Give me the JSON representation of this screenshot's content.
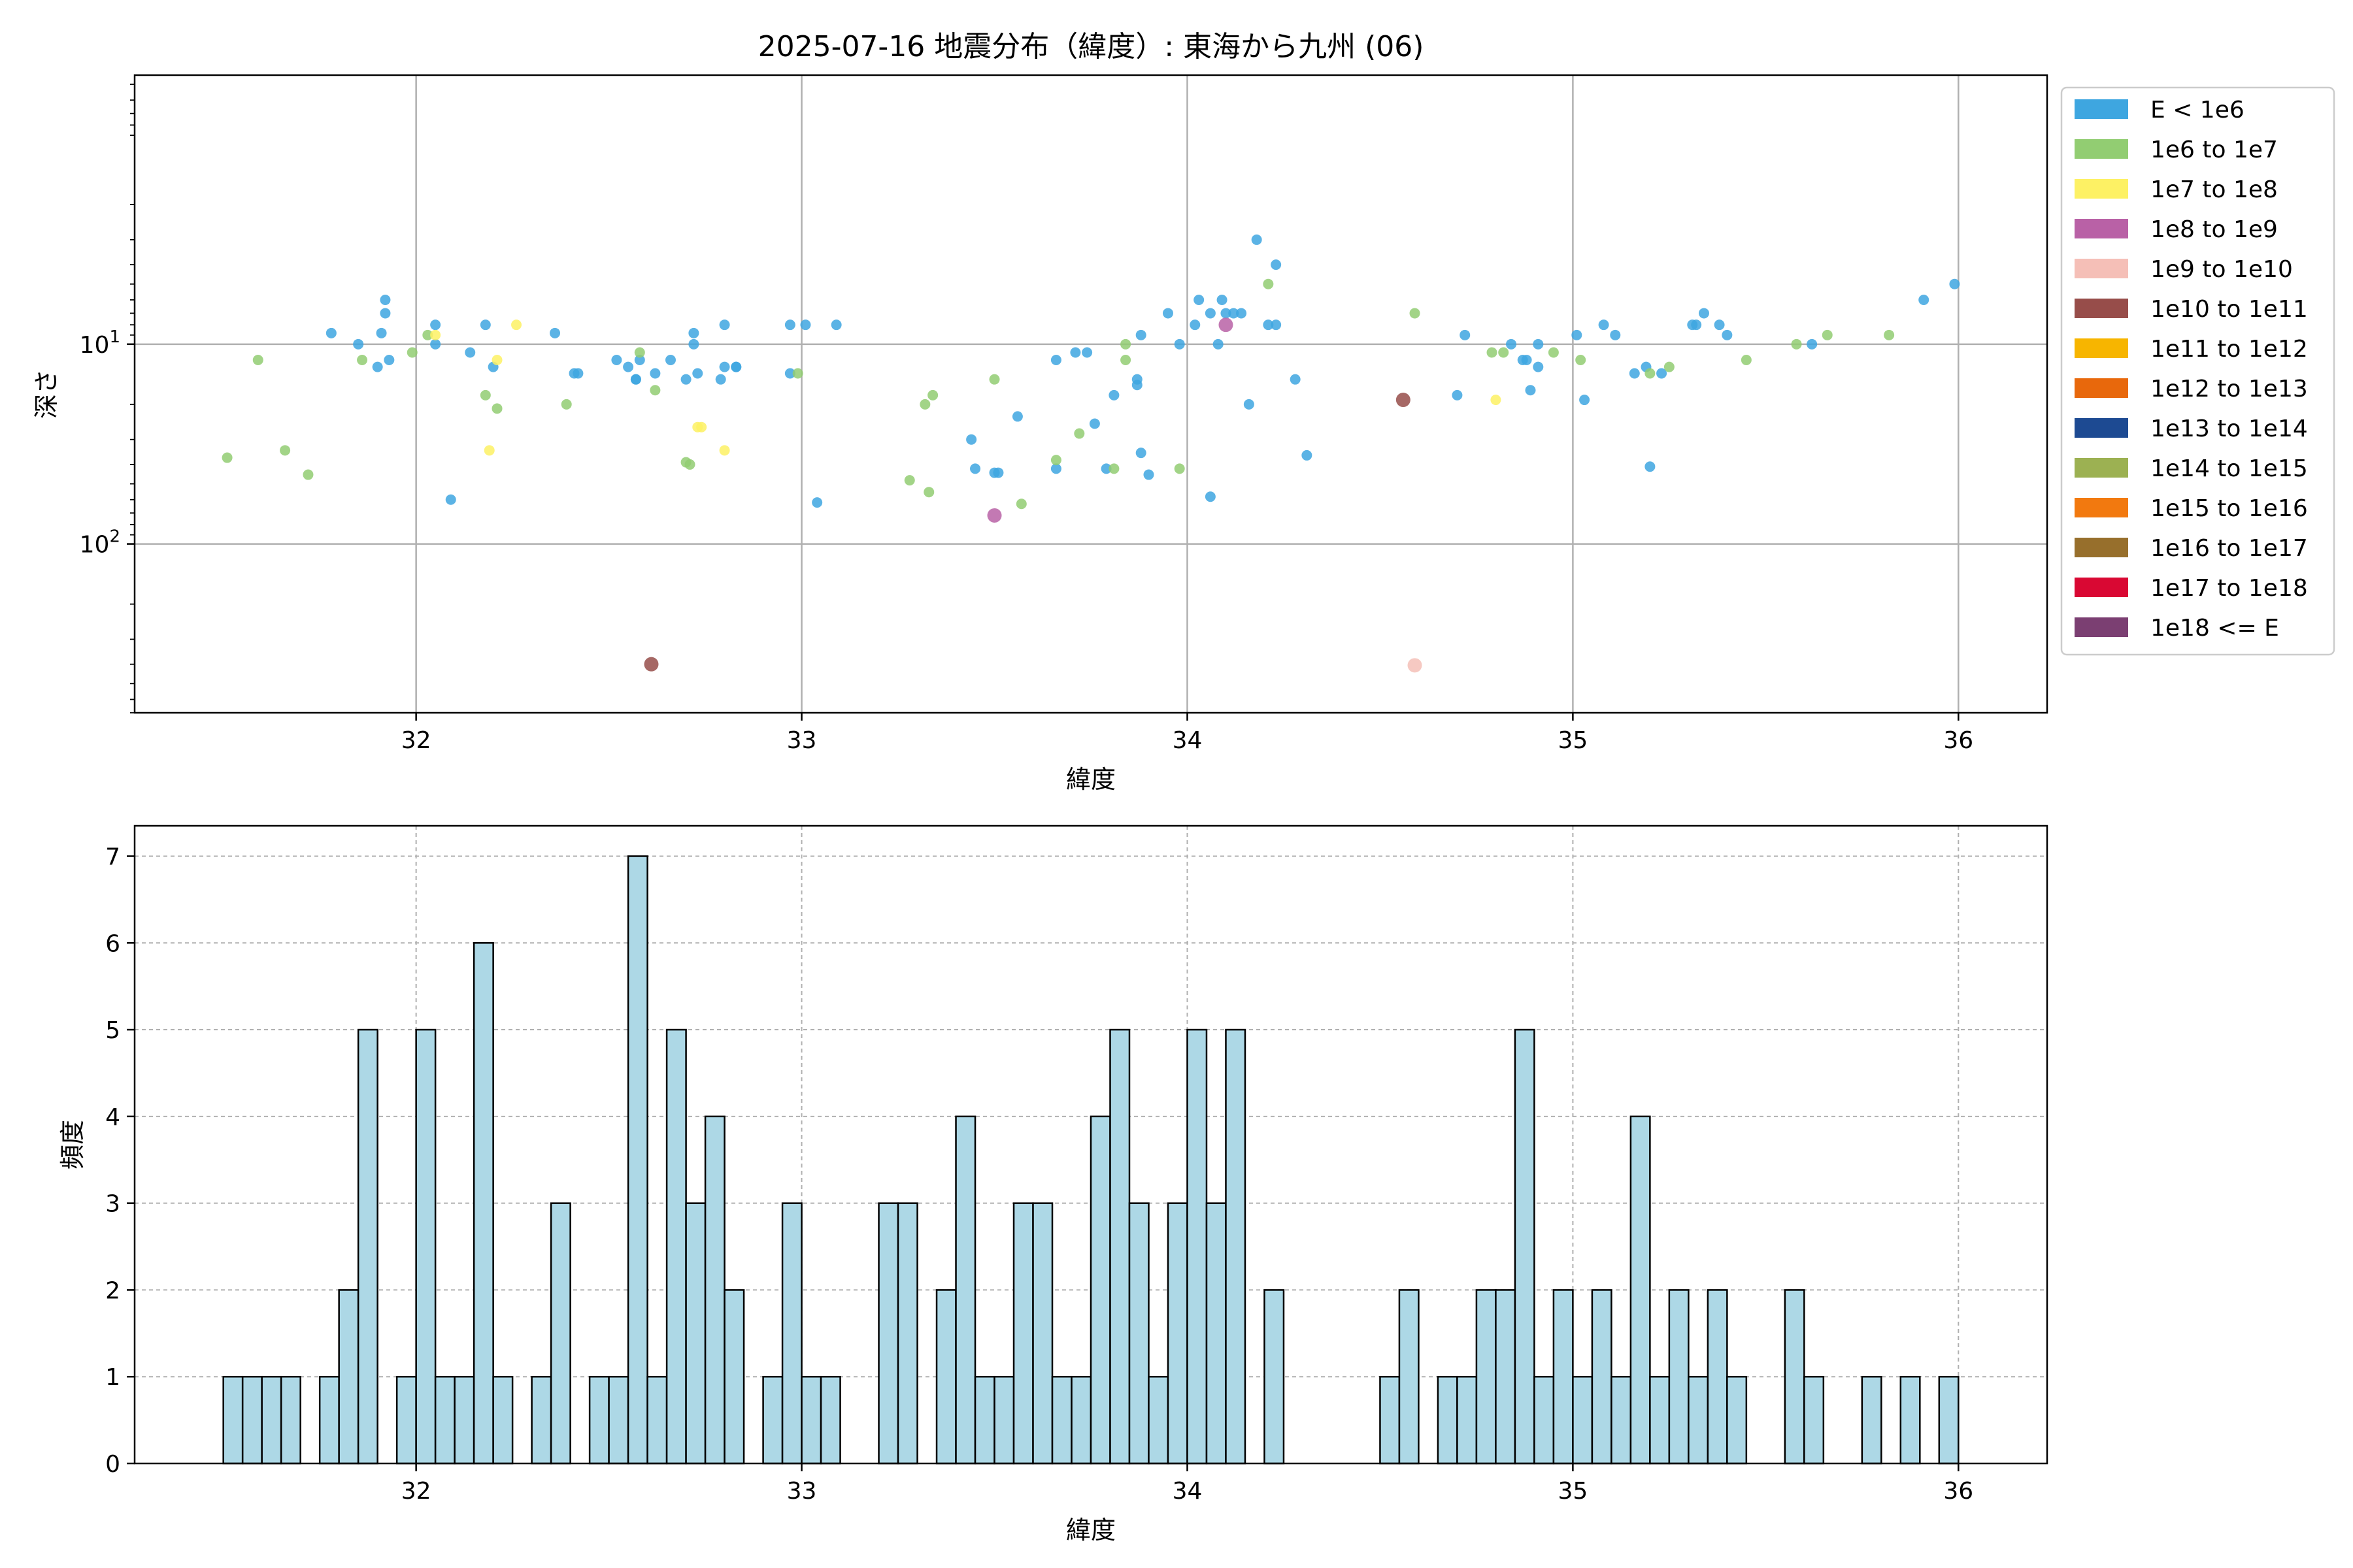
{
  "title": "2025-07-16 地震分布（緯度）: 東海から九州 (06)",
  "chart_data": [
    {
      "type": "scatter",
      "xlabel": "緯度",
      "ylabel": "深さ",
      "yscale": "log",
      "yaxis_inverted": true,
      "xlim": [
        31.27,
        36.23
      ],
      "ylim_depth": [
        0.45,
        700
      ],
      "xticks": [
        32,
        33,
        34,
        35,
        36
      ],
      "yticks": [
        {
          "value": 10,
          "label": "10^1"
        },
        {
          "value": 100,
          "label": "10^2"
        }
      ],
      "grid": true,
      "legend_position": "outside-right-top",
      "legend": [
        {
          "label": "E < 1e6",
          "color": "#3ea6e0"
        },
        {
          "label": "1e6 to 1e7",
          "color": "#92cd72"
        },
        {
          "label": "1e7 to 1e8",
          "color": "#fdf164"
        },
        {
          "label": "1e8 to 1e9",
          "color": "#b961a6"
        },
        {
          "label": "1e9 to 1e10",
          "color": "#f5bfb7"
        },
        {
          "label": "1e10 to 1e11",
          "color": "#974d4a"
        },
        {
          "label": "1e11 to 1e12",
          "color": "#f7b500"
        },
        {
          "label": "1e12 to 1e13",
          "color": "#e8680c"
        },
        {
          "label": "1e13 to 1e14",
          "color": "#1d4a92"
        },
        {
          "label": "1e14 to 1e15",
          "color": "#9cb152"
        },
        {
          "label": "1e15 to 1e16",
          "color": "#f2790f"
        },
        {
          "label": "1e16 to 1e17",
          "color": "#976f2c"
        },
        {
          "label": "1e17 to 1e18",
          "color": "#d90833"
        },
        {
          "label": "1e18 <= E",
          "color": "#7b3f72"
        }
      ],
      "series": [
        {
          "class": 0,
          "points": [
            [
              31.78,
              8.8
            ],
            [
              31.85,
              10
            ],
            [
              31.9,
              13
            ],
            [
              31.91,
              8.8
            ],
            [
              31.92,
              6
            ],
            [
              31.92,
              7
            ],
            [
              31.93,
              12
            ],
            [
              32.05,
              8
            ],
            [
              32.05,
              10
            ],
            [
              32.09,
              60
            ],
            [
              32.14,
              11
            ],
            [
              32.18,
              8
            ],
            [
              32.2,
              13
            ],
            [
              32.36,
              8.8
            ],
            [
              32.41,
              14
            ],
            [
              32.42,
              14
            ],
            [
              32.52,
              12
            ],
            [
              32.55,
              13
            ],
            [
              32.57,
              15
            ],
            [
              32.57,
              15
            ],
            [
              32.58,
              12
            ],
            [
              32.62,
              14
            ],
            [
              32.66,
              12
            ],
            [
              32.7,
              15
            ],
            [
              32.72,
              10
            ],
            [
              32.73,
              14
            ],
            [
              32.72,
              8.8
            ],
            [
              32.79,
              15
            ],
            [
              32.8,
              13
            ],
            [
              32.8,
              8
            ],
            [
              32.83,
              13
            ],
            [
              32.83,
              13
            ],
            [
              32.97,
              14
            ],
            [
              32.97,
              8
            ],
            [
              33.01,
              8
            ],
            [
              33.04,
              62
            ],
            [
              33.09,
              8
            ],
            [
              33.44,
              30
            ],
            [
              33.45,
              42
            ],
            [
              33.5,
              44
            ],
            [
              33.51,
              44
            ],
            [
              33.56,
              23
            ],
            [
              33.66,
              12
            ],
            [
              33.66,
              42
            ],
            [
              33.71,
              11
            ],
            [
              33.74,
              11
            ],
            [
              33.76,
              25
            ],
            [
              33.79,
              42
            ],
            [
              33.81,
              18
            ],
            [
              33.87,
              16
            ],
            [
              33.87,
              15
            ],
            [
              33.88,
              9
            ],
            [
              33.88,
              35
            ],
            [
              33.9,
              45
            ],
            [
              33.95,
              7
            ],
            [
              33.98,
              10
            ],
            [
              34.02,
              8
            ],
            [
              34.03,
              6
            ],
            [
              34.06,
              7
            ],
            [
              34.06,
              58
            ],
            [
              34.08,
              10
            ],
            [
              34.09,
              6
            ],
            [
              34.1,
              7
            ],
            [
              34.12,
              7
            ],
            [
              34.14,
              7
            ],
            [
              34.16,
              20
            ],
            [
              34.18,
              3
            ],
            [
              34.21,
              8
            ],
            [
              34.23,
              4
            ],
            [
              34.23,
              8
            ],
            [
              34.28,
              15
            ],
            [
              34.31,
              36
            ],
            [
              34.7,
              18
            ],
            [
              34.72,
              9
            ],
            [
              34.84,
              10
            ],
            [
              34.87,
              12
            ],
            [
              34.88,
              12
            ],
            [
              34.89,
              17
            ],
            [
              34.91,
              13
            ],
            [
              34.91,
              10
            ],
            [
              35.01,
              9
            ],
            [
              35.03,
              19
            ],
            [
              35.08,
              8
            ],
            [
              35.11,
              9
            ],
            [
              35.16,
              14
            ],
            [
              35.19,
              13
            ],
            [
              35.2,
              41
            ],
            [
              35.23,
              14
            ],
            [
              35.31,
              8
            ],
            [
              35.32,
              8
            ],
            [
              35.34,
              7
            ],
            [
              35.38,
              8
            ],
            [
              35.4,
              9
            ],
            [
              35.62,
              10
            ],
            [
              35.91,
              6
            ],
            [
              35.99,
              5
            ]
          ]
        },
        {
          "class": 1,
          "points": [
            [
              31.51,
              37
            ],
            [
              31.59,
              12
            ],
            [
              31.66,
              34
            ],
            [
              31.72,
              45
            ],
            [
              31.86,
              12
            ],
            [
              31.99,
              11
            ],
            [
              32.03,
              9
            ],
            [
              32.18,
              18
            ],
            [
              32.21,
              21
            ],
            [
              32.39,
              20
            ],
            [
              32.58,
              11
            ],
            [
              32.62,
              17
            ],
            [
              32.7,
              39
            ],
            [
              32.71,
              40
            ],
            [
              32.99,
              14
            ],
            [
              33.28,
              48
            ],
            [
              33.32,
              20
            ],
            [
              33.33,
              55
            ],
            [
              33.34,
              18
            ],
            [
              33.5,
              15
            ],
            [
              33.57,
              63
            ],
            [
              33.66,
              38
            ],
            [
              33.72,
              28
            ],
            [
              33.81,
              42
            ],
            [
              33.84,
              12
            ],
            [
              33.84,
              10
            ],
            [
              33.98,
              42
            ],
            [
              34.21,
              5
            ],
            [
              34.59,
              7
            ],
            [
              34.79,
              11
            ],
            [
              34.82,
              11
            ],
            [
              34.95,
              11
            ],
            [
              35.02,
              12
            ],
            [
              35.2,
              14
            ],
            [
              35.25,
              13
            ],
            [
              35.45,
              12
            ],
            [
              35.58,
              10
            ],
            [
              35.66,
              9
            ],
            [
              35.82,
              9
            ]
          ]
        },
        {
          "class": 2,
          "points": [
            [
              32.05,
              9
            ],
            [
              32.19,
              34
            ],
            [
              32.21,
              12
            ],
            [
              32.26,
              8
            ],
            [
              32.73,
              26
            ],
            [
              32.74,
              26
            ],
            [
              32.8,
              34
            ],
            [
              34.8,
              19
            ]
          ]
        },
        {
          "class": 3,
          "points": [
            [
              33.5,
              72
            ],
            [
              34.1,
              8
            ]
          ]
        },
        {
          "class": 4,
          "points": [
            [
              34.59,
              405
            ]
          ]
        },
        {
          "class": 5,
          "points": [
            [
              32.61,
              400
            ],
            [
              34.56,
              19
            ]
          ]
        }
      ]
    },
    {
      "type": "bar",
      "xlabel": "緯度",
      "ylabel": "頻度",
      "xlim": [
        31.27,
        36.23
      ],
      "ylim": [
        0,
        7.35
      ],
      "xticks": [
        32,
        33,
        34,
        35,
        36
      ],
      "yticks": [
        0,
        1,
        2,
        3,
        4,
        5,
        6,
        7
      ],
      "grid": true,
      "bar_color": "#add8e6",
      "bin_start": 31.5,
      "bin_width": 0.05,
      "values": [
        1,
        1,
        1,
        1,
        0,
        1,
        2,
        5,
        0,
        1,
        5,
        1,
        1,
        6,
        1,
        0,
        1,
        3,
        0,
        1,
        1,
        7,
        1,
        5,
        3,
        4,
        2,
        0,
        1,
        3,
        1,
        1,
        0,
        0,
        3,
        3,
        0,
        2,
        4,
        1,
        1,
        3,
        3,
        1,
        1,
        4,
        5,
        3,
        1,
        3,
        5,
        3,
        5,
        0,
        2,
        0,
        0,
        0,
        0,
        0,
        1,
        2,
        0,
        1,
        1,
        2,
        2,
        5,
        1,
        2,
        1,
        2,
        1,
        4,
        1,
        2,
        1,
        2,
        1,
        0,
        0,
        2,
        1,
        0,
        0,
        1,
        0,
        1,
        0,
        1
      ]
    }
  ]
}
